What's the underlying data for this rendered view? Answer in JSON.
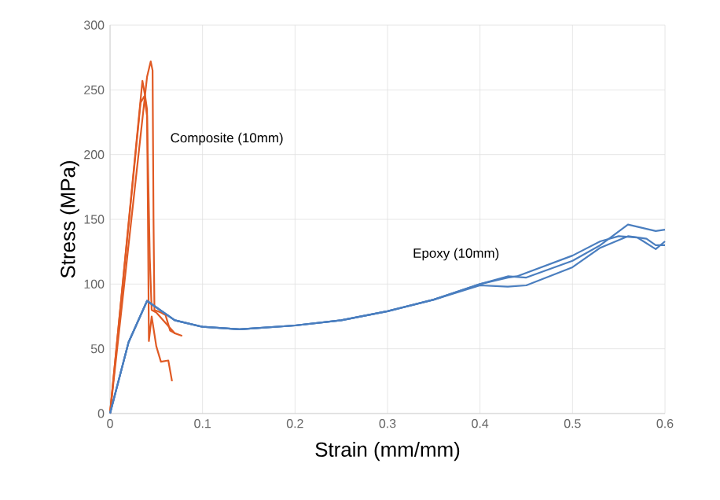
{
  "chart_data": {
    "type": "line",
    "xlabel": "Strain (mm/mm)",
    "ylabel": "Stress (MPa)",
    "xlim": [
      0,
      0.6
    ],
    "ylim": [
      0,
      300
    ],
    "xticks": [
      0,
      0.1,
      0.2,
      0.3,
      0.4,
      0.5,
      0.6
    ],
    "yticks": [
      0,
      50,
      100,
      150,
      200,
      250,
      300
    ],
    "grid": true,
    "marker": "none",
    "line_style": "solid",
    "annotations": [
      "Composite (10mm)",
      "Epoxy (10mm)"
    ],
    "series": [
      {
        "color": "#e05a24",
        "x": [
          0,
          0.035,
          0.038,
          0.04,
          0.041,
          0.042,
          0.045,
          0.05,
          0.055,
          0.063,
          0.067
        ],
        "values": [
          0,
          257,
          245,
          235,
          150,
          56,
          75,
          52,
          40,
          41,
          25
        ]
      },
      {
        "color": "#e05a24",
        "x": [
          0,
          0.04,
          0.044,
          0.046,
          0.047,
          0.048,
          0.055,
          0.06,
          0.065,
          0.07
        ],
        "values": [
          0,
          260,
          272,
          265,
          150,
          80,
          78,
          76,
          64,
          62
        ]
      },
      {
        "color": "#e05a24",
        "x": [
          0,
          0.033,
          0.037,
          0.04,
          0.043,
          0.045,
          0.05,
          0.06,
          0.07,
          0.078
        ],
        "values": [
          0,
          240,
          245,
          230,
          120,
          80,
          78,
          70,
          62,
          60
        ]
      },
      {
        "color": "#4a7ebf",
        "x": [
          0,
          0.02,
          0.04,
          0.05,
          0.07,
          0.1,
          0.14,
          0.2,
          0.25,
          0.3,
          0.35,
          0.4,
          0.43,
          0.45,
          0.5,
          0.53,
          0.56,
          0.59,
          0.6
        ],
        "values": [
          0,
          55,
          87,
          82,
          72,
          67,
          65,
          68,
          72,
          79,
          88,
          100,
          106,
          105,
          118,
          130,
          146,
          141,
          142
        ]
      },
      {
        "color": "#4a7ebf",
        "x": [
          0,
          0.02,
          0.04,
          0.05,
          0.07,
          0.1,
          0.14,
          0.2,
          0.25,
          0.3,
          0.35,
          0.4,
          0.43,
          0.44,
          0.5,
          0.53,
          0.55,
          0.57,
          0.59,
          0.6
        ],
        "values": [
          0,
          55,
          87,
          82,
          72,
          67,
          65,
          68,
          72,
          79,
          88,
          100,
          105,
          106,
          122,
          133,
          137,
          136,
          127,
          133
        ]
      },
      {
        "color": "#4a7ebf",
        "x": [
          0,
          0.02,
          0.04,
          0.05,
          0.07,
          0.1,
          0.14,
          0.2,
          0.25,
          0.3,
          0.35,
          0.4,
          0.43,
          0.45,
          0.5,
          0.53,
          0.56,
          0.58,
          0.59,
          0.6
        ],
        "values": [
          0,
          55,
          87,
          82,
          72,
          67,
          65,
          68,
          72,
          79,
          88,
          99,
          98,
          99,
          113,
          128,
          137,
          135,
          130,
          130
        ]
      }
    ]
  }
}
